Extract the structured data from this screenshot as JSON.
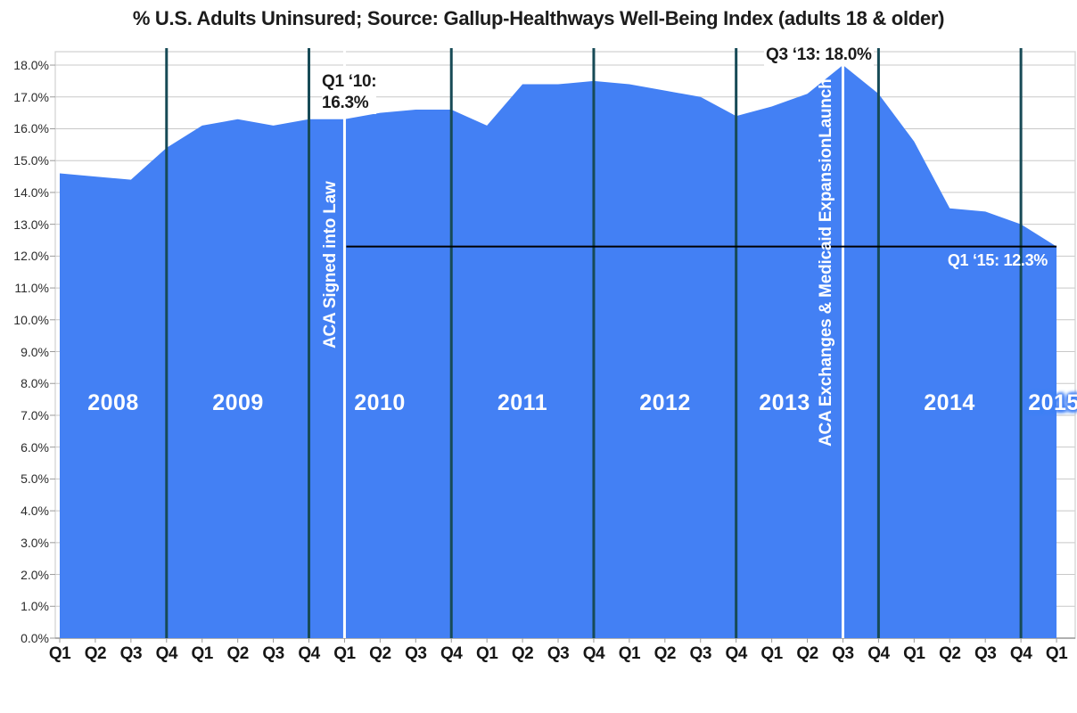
{
  "chart_data": {
    "type": "area",
    "title": "% U.S. Adults Uninsured; Source: Gallup-Healthways Well-Being Index (adults 18 & older)",
    "series": [
      {
        "name": "% U.S. Adults Uninsured",
        "values": [
          14.6,
          14.5,
          14.4,
          15.4,
          16.1,
          16.3,
          16.1,
          16.3,
          16.3,
          16.5,
          16.6,
          16.6,
          16.1,
          17.4,
          17.4,
          17.5,
          17.4,
          17.2,
          17.0,
          16.4,
          16.7,
          17.1,
          18.0,
          17.1,
          15.6,
          13.5,
          13.4,
          13.0,
          12.3
        ]
      }
    ],
    "x_quarter_labels": [
      "Q1",
      "Q2",
      "Q3",
      "Q4",
      "Q1",
      "Q2",
      "Q3",
      "Q4",
      "Q1",
      "Q2",
      "Q3",
      "Q4",
      "Q1",
      "Q2",
      "Q3",
      "Q4",
      "Q1",
      "Q2",
      "Q3",
      "Q4",
      "Q1",
      "Q2",
      "Q3",
      "Q4",
      "Q1",
      "Q2",
      "Q3",
      "Q4",
      "Q1"
    ],
    "year_labels": [
      "2008",
      "2009",
      "2010",
      "2011",
      "2012",
      "2013",
      "2014",
      "2015"
    ],
    "y_tick_labels": [
      "0.0%",
      "1.0%",
      "2.0%",
      "3.0%",
      "4.0%",
      "5.0%",
      "6.0%",
      "7.0%",
      "8.0%",
      "9.0%",
      "10.0%",
      "11.0%",
      "12.0%",
      "13.0%",
      "14.0%",
      "15.0%",
      "16.0%",
      "17.0%",
      "18.0%"
    ],
    "ylim": [
      0,
      18
    ],
    "grid": true,
    "legend": "none",
    "annotations": [
      {
        "id": "q1-2010",
        "lines": [
          "Q1 ‘10:",
          "16.3%"
        ],
        "x_quarter": "2010 Q1",
        "value": 16.3
      },
      {
        "id": "q3-2013",
        "lines": [
          "Q3 ‘13: 18.0%"
        ],
        "x_quarter": "2013 Q3",
        "value": 18.0
      },
      {
        "id": "q1-2015",
        "lines": [
          "Q1 ‘15: 12.3%"
        ],
        "x_quarter": "2015 Q1",
        "value": 12.3
      }
    ],
    "event_lines": [
      {
        "label": "ACA Signed into Law",
        "x_quarter": "2010 Q1"
      },
      {
        "label": "ACA Exchanges & Medicaid ExpansionLaunch",
        "x_quarter": "2013 Q3"
      }
    ],
    "reference_line": {
      "value": 12.3,
      "from_quarter": "2010 Q1",
      "to_quarter": "2015 Q1"
    },
    "colors": {
      "area": "#4380F4",
      "year_separator": "#174A56",
      "event_line": "#FFFFFF",
      "reference_line": "#000000",
      "gridline": "#C8C8C8",
      "axis": "#9A9A9A",
      "border": "#D4D4D4"
    }
  }
}
